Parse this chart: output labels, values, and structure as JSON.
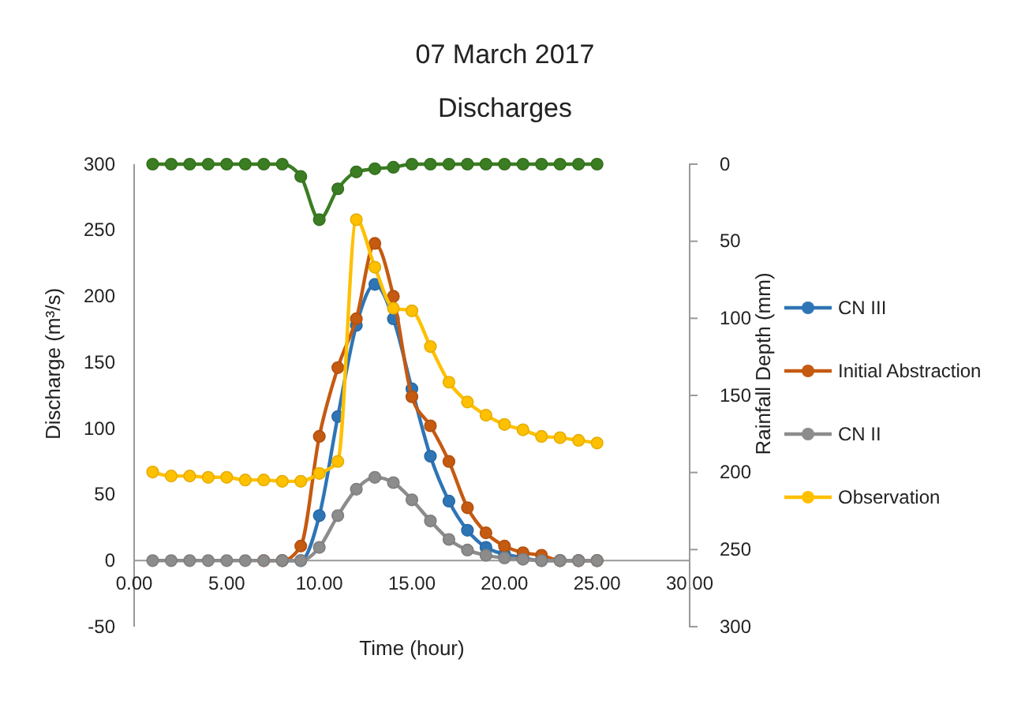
{
  "chart_data": {
    "type": "line",
    "title": "07 March 2017",
    "subtitle": "Discharges",
    "xlabel": "Time (hour)",
    "ylabel": "Discharge (m³/s)",
    "y2label": "Rainfall Depth (mm)",
    "x": [
      1,
      2,
      3,
      4,
      5,
      6,
      7,
      8,
      9,
      10,
      11,
      12,
      13,
      14,
      15,
      16,
      17,
      18,
      19,
      20,
      21,
      22,
      23,
      24,
      25
    ],
    "xlim": [
      0,
      30
    ],
    "xticks": [
      {
        "value": 0,
        "label": "0.00"
      },
      {
        "value": 5,
        "label": "5.00"
      },
      {
        "value": 10,
        "label": "10.00"
      },
      {
        "value": 15,
        "label": "15.00"
      },
      {
        "value": 20,
        "label": "20.00"
      },
      {
        "value": 25,
        "label": "25.00"
      },
      {
        "value": 30,
        "label": "30.00"
      }
    ],
    "ylim": [
      -50,
      300
    ],
    "yticks": [
      -50,
      0,
      50,
      100,
      150,
      200,
      250,
      300
    ],
    "y2lim": [
      300,
      0
    ],
    "y2ticks": [
      0,
      50,
      100,
      150,
      200,
      250,
      300
    ],
    "marker": "circle",
    "legend": "right",
    "grid": false,
    "series": [
      {
        "color": "#3b7d23",
        "axis": "y2",
        "values": [
          0,
          0,
          0,
          0,
          0,
          0,
          0,
          0,
          8,
          36,
          16,
          5,
          3,
          2,
          0,
          0,
          0,
          0,
          0,
          0,
          0,
          0,
          0,
          0,
          0
        ]
      },
      {
        "name": "CN III",
        "color": "#2e75b6",
        "values": [
          null,
          null,
          null,
          null,
          null,
          null,
          null,
          0,
          0,
          34,
          109,
          178,
          209,
          183,
          130,
          79,
          45,
          23,
          10,
          5,
          2,
          0,
          0,
          0,
          0
        ]
      },
      {
        "name": "Initial Abstraction",
        "color": "#c55a11",
        "values": [
          null,
          null,
          null,
          null,
          null,
          null,
          0,
          0,
          11,
          94,
          146,
          183,
          240,
          200,
          124,
          102,
          75,
          40,
          21,
          11,
          6,
          4,
          0,
          0,
          0
        ]
      },
      {
        "name": "CN II",
        "color": "#8c8c8c",
        "values": [
          0,
          0,
          0,
          0,
          0,
          0,
          0,
          0,
          0,
          10,
          34,
          54,
          63,
          59,
          46,
          30,
          16,
          8,
          4,
          2,
          1,
          0,
          0,
          0,
          0
        ]
      },
      {
        "name": "Observation",
        "color": "#ffc000",
        "values": [
          67,
          64,
          64,
          63,
          63,
          61,
          61,
          60,
          60,
          66,
          75,
          258,
          222,
          191,
          189,
          162,
          135,
          120,
          110,
          103,
          99,
          94,
          93,
          91,
          89
        ]
      }
    ]
  }
}
